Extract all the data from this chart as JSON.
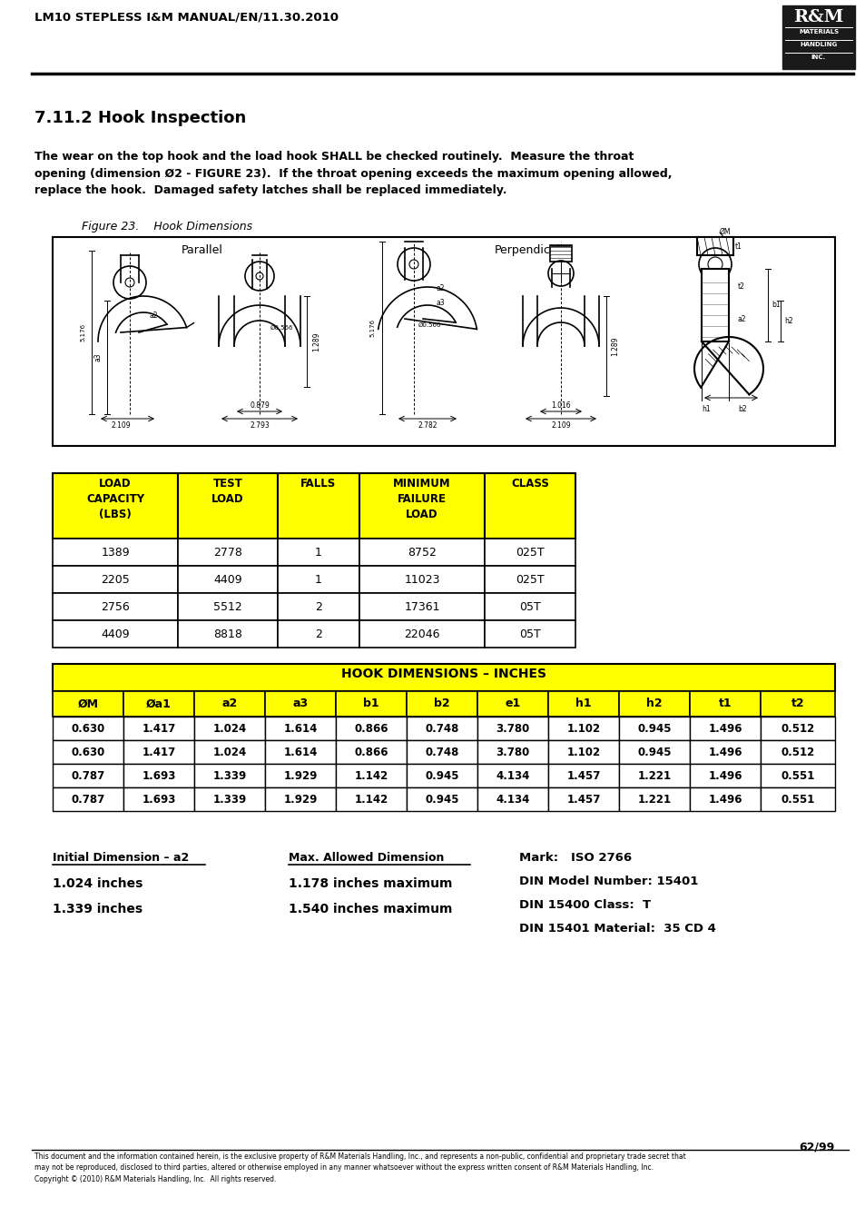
{
  "header_text": "LM10 STEPLESS I&M MANUAL/EN/11.30.2010",
  "section_title": "7.11.2 Hook Inspection",
  "body_text": "The wear on the top hook and the load hook SHALL be checked routinely.  Measure the throat\nopening (dimension Ø2 - FIGURE 23).  If the throat opening exceeds the maximum opening allowed,\nreplace the hook.  Damaged safety latches shall be replaced immediately.",
  "figure_caption": "Figure 23.    Hook Dimensions",
  "table1_headers": [
    "LOAD\nCAPACITY\n(LBS)",
    "TEST\nLOAD",
    "FALLS",
    "MINIMUM\nFAILURE\nLOAD",
    "CLASS"
  ],
  "table1_data": [
    [
      "1389",
      "2778",
      "1",
      "8752",
      "025T"
    ],
    [
      "2205",
      "4409",
      "1",
      "11023",
      "025T"
    ],
    [
      "2756",
      "5512",
      "2",
      "17361",
      "05T"
    ],
    [
      "4409",
      "8818",
      "2",
      "22046",
      "05T"
    ]
  ],
  "table2_title": "HOOK DIMENSIONS – INCHES",
  "table2_headers": [
    "ØM",
    "Øa1",
    "a2",
    "a3",
    "b1",
    "b2",
    "e1",
    "h1",
    "h2",
    "t1",
    "t2"
  ],
  "table2_data": [
    [
      "0.630",
      "1.417",
      "1.024",
      "1.614",
      "0.866",
      "0.748",
      "3.780",
      "1.102",
      "0.945",
      "1.496",
      "0.512"
    ],
    [
      "0.630",
      "1.417",
      "1.024",
      "1.614",
      "0.866",
      "0.748",
      "3.780",
      "1.102",
      "0.945",
      "1.496",
      "0.512"
    ],
    [
      "0.787",
      "1.693",
      "1.339",
      "1.929",
      "1.142",
      "0.945",
      "4.134",
      "1.457",
      "1.221",
      "1.496",
      "0.551"
    ],
    [
      "0.787",
      "1.693",
      "1.339",
      "1.929",
      "1.142",
      "0.945",
      "4.134",
      "1.457",
      "1.221",
      "1.496",
      "0.551"
    ]
  ],
  "bottom_col1_header": "Initial Dimension – a2",
  "bottom_col1_data": [
    "1.024 inches",
    "1.339 inches"
  ],
  "bottom_col2_header": "Max. Allowed Dimension",
  "bottom_col2_data": [
    "1.178 inches maximum",
    "1.540 inches maximum"
  ],
  "bottom_col3_data": [
    "Mark:   ISO 2766",
    "DIN Model Number: 15401",
    "DIN 15400 Class:  T",
    "DIN 15401 Material:  35 CD 4"
  ],
  "page_number": "62/99",
  "footer_text": "This document and the information contained herein, is the exclusive property of R&M Materials Handling, Inc., and represents a non-public, confidential and proprietary trade secret that\nmay not be reproduced, disclosed to third parties, altered or otherwise employed in any manner whatsoever without the express written consent of R&M Materials Handling, Inc.\nCopyright © (2010) R&M Materials Handling, Inc.  All rights reserved.",
  "yellow": "#FFFF00",
  "black": "#000000",
  "white": "#FFFFFF"
}
